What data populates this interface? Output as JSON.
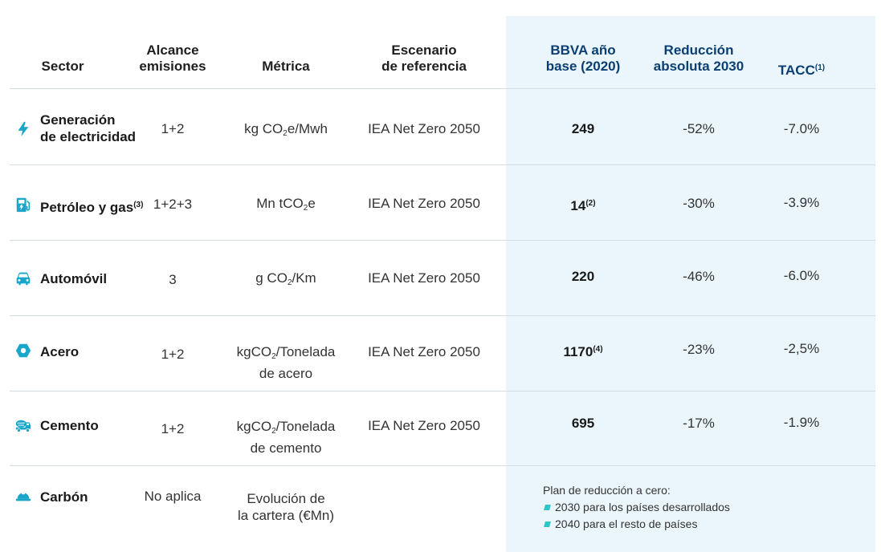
{
  "headers": {
    "sector": "Sector",
    "alcance": [
      "Alcance",
      "emisiones"
    ],
    "metrica": "Métrica",
    "escenario": [
      "Escenario",
      "de referencia"
    ],
    "base": [
      "BBVA año",
      "base (2020)"
    ],
    "reduccion": [
      "Reducción",
      "absoluta 2030"
    ],
    "tacc": "TACC",
    "tacc_note": "(1)"
  },
  "rows": [
    {
      "icon": "lightning-icon",
      "sector": [
        "Generación",
        "de electricidad"
      ],
      "sector_note": "",
      "alcance": "1+2",
      "metrica_pre": "kg CO",
      "metrica_sub": "2",
      "metrica_post": "e/Mwh",
      "metrica_line2": "",
      "escenario": "IEA Net Zero 2050",
      "base": "249",
      "base_note": "",
      "reduccion": "-52%",
      "tacc": "-7.0%"
    },
    {
      "icon": "fuel-pump-icon",
      "sector": [
        "Petróleo y gas"
      ],
      "sector_note": "(3)",
      "alcance": "1+2+3",
      "metrica_pre": "Mn tCO",
      "metrica_sub": "2",
      "metrica_post": "e",
      "metrica_line2": "",
      "escenario": "IEA Net Zero 2050",
      "base": "14",
      "base_note": "(2)",
      "reduccion": "-30%",
      "tacc": "-3.9%"
    },
    {
      "icon": "car-icon",
      "sector": [
        "Automóvil"
      ],
      "sector_note": "",
      "alcance": "3",
      "metrica_pre": "g CO",
      "metrica_sub": "2",
      "metrica_post": "/Km",
      "metrica_line2": "",
      "escenario": "IEA Net Zero 2050",
      "base": "220",
      "base_note": "",
      "reduccion": "-46%",
      "tacc": "-6.0%"
    },
    {
      "icon": "steel-hexagon-icon",
      "sector": [
        "Acero"
      ],
      "sector_note": "",
      "alcance": "1+2",
      "metrica_pre": "kgCO",
      "metrica_sub": "2",
      "metrica_post": "/Tonelada",
      "metrica_line2": "de acero",
      "escenario": "IEA Net Zero 2050",
      "base": "1170",
      "base_note": "(4)",
      "reduccion": "-23%",
      "tacc": "-2,5%"
    },
    {
      "icon": "cement-mixer-icon",
      "sector": [
        "Cemento"
      ],
      "sector_note": "",
      "alcance": "1+2",
      "metrica_pre": "kgCO",
      "metrica_sub": "2",
      "metrica_post": "/Tonelada",
      "metrica_line2": "de cemento",
      "escenario": "IEA Net Zero 2050",
      "base": "695",
      "base_note": "",
      "reduccion": "-17%",
      "tacc": "-1.9%"
    }
  ],
  "carbon": {
    "icon": "mining-helmet-icon",
    "sector": "Carbón",
    "alcance": "No aplica",
    "metrica": [
      "Evolución de",
      "la cartera (€Mn)"
    ],
    "plan_title": "Plan de reducción a cero:",
    "plan_items": [
      "2030 para los países desarrollados",
      "2040 para el resto de países"
    ]
  },
  "colors": {
    "accent": "#19a6c9",
    "header_blue": "#0b3f73",
    "highlight_bg": "#eaf6fb"
  }
}
